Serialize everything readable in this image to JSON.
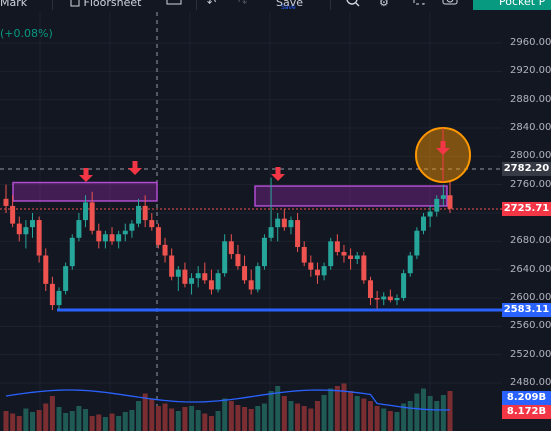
{
  "toolbar": {
    "mark_label": "Mark",
    "floorsheet_label": "Floorsheet",
    "save_label": "Save",
    "save_caption": "Save",
    "pocket_label": "Pocket P"
  },
  "legend": {
    "change_text": "(+0.08%)"
  },
  "price_axis": {
    "ticks": [
      "2960.00",
      "2920.00",
      "2880.00",
      "2840.00",
      "2800.00",
      "2760.00",
      "2720.00",
      "2680.00",
      "2640.00",
      "2600.00",
      "2560.00",
      "2520.00",
      "2480.00"
    ],
    "crosshair_label": "2782.20",
    "last_price_label": "2725.71",
    "support_label": "2583.11",
    "volume_label_1": "8.209B",
    "volume_label_2": "8.172B"
  },
  "colors": {
    "background": "#131722",
    "up": "#26a69a",
    "down": "#ef5350",
    "support_line": "#2962ff",
    "zone_fill": "#9c27b0",
    "annotation_arrow": "#f23645",
    "highlight_circle": "#ff9800"
  },
  "icons": [
    "undo-icon",
    "redo-icon",
    "search-icon",
    "gear-icon",
    "fullscreen-icon",
    "camera-icon"
  ],
  "chart_data": {
    "type": "candlestick",
    "price_range": [
      2470,
      2980
    ],
    "crosshair_price": 2782.2,
    "last_price": 2725.71,
    "support_level": 2583.11,
    "resistance_zones": [
      {
        "high": 2763,
        "low": 2737
      },
      {
        "high": 2758,
        "low": 2730
      }
    ],
    "candles": [
      [
        2740,
        2760,
        2720,
        2730
      ],
      [
        2730,
        2745,
        2700,
        2705
      ],
      [
        2705,
        2715,
        2680,
        2690
      ],
      [
        2690,
        2710,
        2670,
        2700
      ],
      [
        2700,
        2720,
        2685,
        2710
      ],
      [
        2710,
        2715,
        2650,
        2660
      ],
      [
        2660,
        2670,
        2610,
        2620
      ],
      [
        2620,
        2630,
        2583,
        2590
      ],
      [
        2590,
        2615,
        2583,
        2610
      ],
      [
        2610,
        2650,
        2605,
        2645
      ],
      [
        2645,
        2690,
        2640,
        2685
      ],
      [
        2685,
        2720,
        2680,
        2710
      ],
      [
        2710,
        2745,
        2700,
        2735
      ],
      [
        2735,
        2750,
        2690,
        2695
      ],
      [
        2695,
        2705,
        2670,
        2680
      ],
      [
        2680,
        2695,
        2670,
        2690
      ],
      [
        2690,
        2700,
        2675,
        2680
      ],
      [
        2680,
        2695,
        2670,
        2690
      ],
      [
        2690,
        2705,
        2680,
        2695
      ],
      [
        2695,
        2710,
        2685,
        2705
      ],
      [
        2705,
        2740,
        2700,
        2730
      ],
      [
        2730,
        2745,
        2700,
        2710
      ],
      [
        2710,
        2720,
        2695,
        2700
      ],
      [
        2700,
        2705,
        2670,
        2675
      ],
      [
        2675,
        2685,
        2650,
        2660
      ],
      [
        2660,
        2670,
        2625,
        2630
      ],
      [
        2630,
        2645,
        2610,
        2640
      ],
      [
        2640,
        2650,
        2615,
        2620
      ],
      [
        2620,
        2635,
        2605,
        2628
      ],
      [
        2628,
        2645,
        2615,
        2635
      ],
      [
        2635,
        2650,
        2620,
        2625
      ],
      [
        2625,
        2640,
        2605,
        2612
      ],
      [
        2612,
        2640,
        2608,
        2635
      ],
      [
        2635,
        2690,
        2630,
        2680
      ],
      [
        2680,
        2690,
        2655,
        2662
      ],
      [
        2662,
        2675,
        2640,
        2645
      ],
      [
        2645,
        2660,
        2620,
        2625
      ],
      [
        2625,
        2640,
        2605,
        2612
      ],
      [
        2612,
        2650,
        2608,
        2645
      ],
      [
        2645,
        2690,
        2640,
        2685
      ],
      [
        2685,
        2770,
        2680,
        2700
      ],
      [
        2700,
        2720,
        2680,
        2712
      ],
      [
        2712,
        2725,
        2695,
        2700
      ],
      [
        2700,
        2715,
        2690,
        2710
      ],
      [
        2710,
        2720,
        2665,
        2672
      ],
      [
        2672,
        2680,
        2645,
        2650
      ],
      [
        2650,
        2660,
        2630,
        2640
      ],
      [
        2640,
        2650,
        2620,
        2632
      ],
      [
        2632,
        2650,
        2625,
        2645
      ],
      [
        2645,
        2685,
        2640,
        2680
      ],
      [
        2680,
        2690,
        2660,
        2665
      ],
      [
        2665,
        2675,
        2650,
        2660
      ],
      [
        2660,
        2670,
        2640,
        2655
      ],
      [
        2655,
        2665,
        2648,
        2660
      ],
      [
        2660,
        2665,
        2620,
        2625
      ],
      [
        2625,
        2630,
        2590,
        2600
      ],
      [
        2600,
        2610,
        2585,
        2598
      ],
      [
        2598,
        2608,
        2590,
        2602
      ],
      [
        2602,
        2612,
        2594,
        2597
      ],
      [
        2597,
        2605,
        2590,
        2600
      ],
      [
        2600,
        2640,
        2596,
        2635
      ],
      [
        2635,
        2665,
        2630,
        2660
      ],
      [
        2660,
        2700,
        2655,
        2695
      ],
      [
        2695,
        2720,
        2690,
        2715
      ],
      [
        2715,
        2730,
        2700,
        2722
      ],
      [
        2722,
        2745,
        2715,
        2740
      ],
      [
        2740,
        2760,
        2730,
        2745
      ],
      [
        2745,
        2765,
        2720,
        2726
      ]
    ],
    "volumes": [
      0.4,
      0.35,
      0.3,
      0.45,
      0.38,
      0.42,
      0.55,
      0.7,
      0.48,
      0.36,
      0.4,
      0.5,
      0.44,
      0.3,
      0.33,
      0.28,
      0.35,
      0.3,
      0.38,
      0.42,
      0.6,
      0.75,
      0.65,
      0.5,
      0.55,
      0.45,
      0.4,
      0.48,
      0.5,
      0.42,
      0.35,
      0.3,
      0.4,
      0.65,
      0.6,
      0.52,
      0.48,
      0.44,
      0.5,
      0.55,
      0.8,
      0.9,
      0.7,
      0.6,
      0.55,
      0.5,
      0.45,
      0.6,
      0.72,
      0.85,
      0.9,
      0.95,
      0.8,
      0.7,
      0.65,
      0.6,
      0.5,
      0.45,
      0.4,
      0.38,
      0.55,
      0.6,
      0.75,
      0.85,
      0.7,
      0.6,
      0.72,
      0.8
    ]
  }
}
